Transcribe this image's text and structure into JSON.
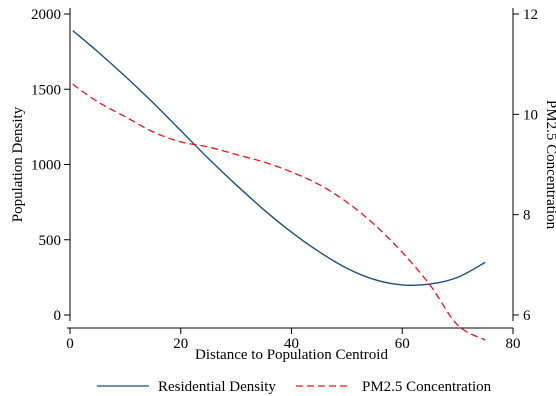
{
  "chart_data": {
    "type": "line",
    "title": "",
    "xlabel": "Distance to Population Centroid",
    "ylabel": "Population Density",
    "y2label": "PM2.5 Concentration",
    "xlim": [
      0,
      80
    ],
    "ylim": [
      0,
      2000
    ],
    "y2lim": [
      6,
      12
    ],
    "xticks": [
      0,
      20,
      40,
      60,
      80
    ],
    "yticks": [
      0,
      500,
      1000,
      1500,
      2000
    ],
    "y2ticks": [
      6,
      8,
      10,
      12
    ],
    "grid": false,
    "legend_position": "bottom",
    "series": [
      {
        "name": "Residential Density",
        "axis": "left",
        "color": "#1f4e79",
        "style": "solid",
        "x": [
          0.5,
          5,
          10,
          15,
          20,
          25,
          30,
          35,
          40,
          45,
          50,
          55,
          60,
          65,
          70,
          75
        ],
        "y": [
          1890,
          1750,
          1585,
          1410,
          1225,
          1040,
          865,
          700,
          550,
          420,
          310,
          235,
          200,
          205,
          250,
          350
        ]
      },
      {
        "name": "PM2.5 Concentration",
        "axis": "right",
        "color": "#e8141b",
        "style": "dashed",
        "x": [
          0.5,
          5,
          10,
          15,
          20,
          25,
          30,
          35,
          40,
          45,
          50,
          55,
          60,
          65,
          70,
          75
        ],
        "y": [
          10.6,
          10.25,
          9.95,
          9.65,
          9.45,
          9.35,
          9.2,
          9.05,
          8.85,
          8.6,
          8.25,
          7.8,
          7.25,
          6.6,
          5.8,
          5.5
        ]
      }
    ]
  }
}
